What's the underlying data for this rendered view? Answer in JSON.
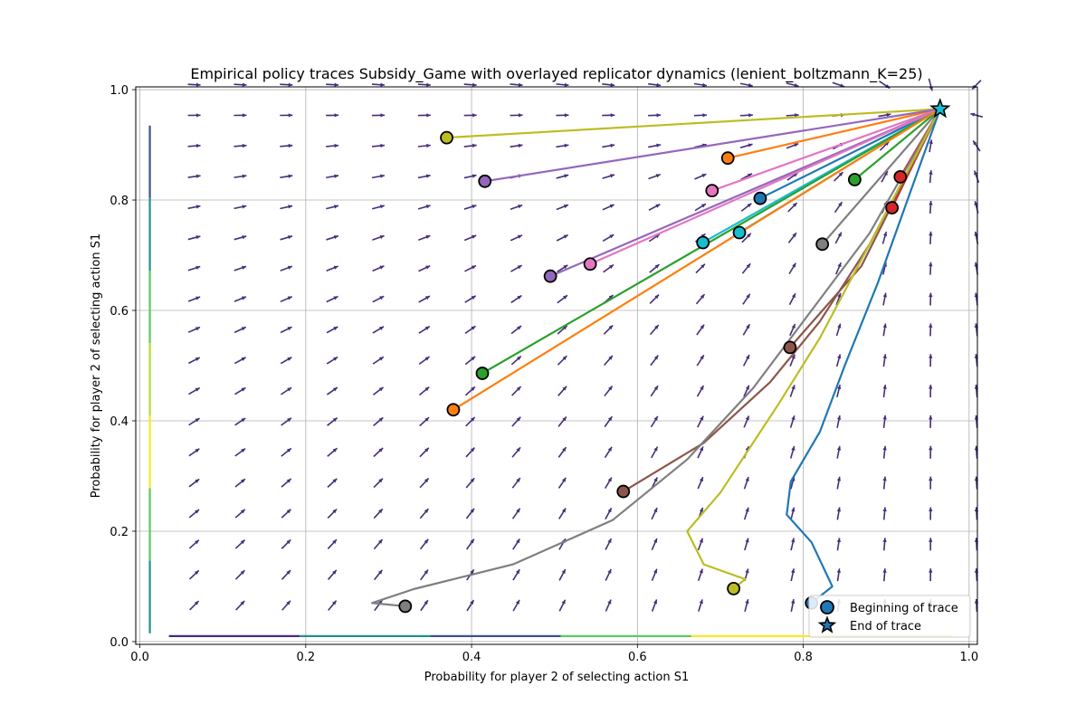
{
  "chart_data": {
    "type": "line",
    "title": "Empirical policy traces Subsidy_Game with overlayed replicator dynamics (lenient_boltzmann_K=25)",
    "xlabel": "Probability for player 2 of selecting action S1",
    "ylabel": "Probability for player 2 of selecting action S1",
    "xlim": [
      -0.005,
      1.01
    ],
    "ylim": [
      -0.005,
      1.005
    ],
    "xticks": [
      "0.0",
      "0.2",
      "0.4",
      "0.6",
      "0.8",
      "1.0"
    ],
    "yticks": [
      "0.0",
      "0.2",
      "0.4",
      "0.6",
      "0.8",
      "1.0"
    ],
    "grid": true,
    "legend": {
      "placement": "bottom-right",
      "entries": [
        "Beginning of trace",
        "End of trace"
      ]
    },
    "end_point": [
      0.965,
      0.965
    ],
    "traces": [
      {
        "color": "#bcbd22",
        "points": [
          [
            0.37,
            0.913
          ],
          [
            0.965,
            0.965
          ]
        ]
      },
      {
        "color": "#ff7f0e",
        "points": [
          [
            0.709,
            0.876
          ],
          [
            0.965,
            0.965
          ]
        ]
      },
      {
        "color": "#9467bd",
        "points": [
          [
            0.416,
            0.834
          ],
          [
            0.965,
            0.965
          ]
        ]
      },
      {
        "color": "#e377c2",
        "points": [
          [
            0.69,
            0.817
          ],
          [
            0.965,
            0.965
          ]
        ]
      },
      {
        "color": "#1f77b4",
        "points": [
          [
            0.748,
            0.803
          ],
          [
            0.965,
            0.965
          ]
        ]
      },
      {
        "color": "#2ca02c",
        "points": [
          [
            0.862,
            0.837
          ],
          [
            0.965,
            0.965
          ]
        ]
      },
      {
        "color": "#d62728",
        "points": [
          [
            0.917,
            0.842
          ],
          [
            0.965,
            0.965
          ]
        ]
      },
      {
        "color": "#d62728",
        "points": [
          [
            0.907,
            0.786
          ],
          [
            0.965,
            0.965
          ]
        ]
      },
      {
        "color": "#7f7f7f",
        "points": [
          [
            0.823,
            0.72
          ],
          [
            0.965,
            0.965
          ]
        ]
      },
      {
        "color": "#17becf",
        "points": [
          [
            0.723,
            0.741
          ],
          [
            0.965,
            0.965
          ]
        ]
      },
      {
        "color": "#17becf",
        "points": [
          [
            0.679,
            0.723
          ],
          [
            0.965,
            0.965
          ]
        ]
      },
      {
        "color": "#9467bd",
        "points": [
          [
            0.495,
            0.662
          ],
          [
            0.965,
            0.965
          ]
        ]
      },
      {
        "color": "#e377c2",
        "points": [
          [
            0.543,
            0.684
          ],
          [
            0.965,
            0.965
          ]
        ]
      },
      {
        "color": "#2ca02c",
        "points": [
          [
            0.413,
            0.486
          ],
          [
            0.965,
            0.965
          ]
        ]
      },
      {
        "color": "#ff7f0e",
        "points": [
          [
            0.378,
            0.42
          ],
          [
            0.965,
            0.965
          ]
        ]
      },
      {
        "color": "#8c564b",
        "points": [
          [
            0.784,
            0.533
          ],
          [
            0.87,
            0.68
          ],
          [
            0.965,
            0.965
          ]
        ]
      },
      {
        "color": "#8c564b",
        "points": [
          [
            0.583,
            0.272
          ],
          [
            0.68,
            0.36
          ],
          [
            0.76,
            0.47
          ],
          [
            0.82,
            0.58
          ],
          [
            0.88,
            0.72
          ],
          [
            0.965,
            0.965
          ]
        ]
      },
      {
        "color": "#7f7f7f",
        "points": [
          [
            0.32,
            0.064
          ],
          [
            0.28,
            0.07
          ],
          [
            0.33,
            0.095
          ],
          [
            0.45,
            0.14
          ],
          [
            0.57,
            0.22
          ],
          [
            0.66,
            0.33
          ],
          [
            0.74,
            0.46
          ],
          [
            0.81,
            0.6
          ],
          [
            0.88,
            0.74
          ],
          [
            0.965,
            0.965
          ]
        ]
      },
      {
        "color": "#bcbd22",
        "points": [
          [
            0.716,
            0.096
          ],
          [
            0.73,
            0.113
          ],
          [
            0.68,
            0.14
          ],
          [
            0.66,
            0.2
          ],
          [
            0.7,
            0.27
          ],
          [
            0.77,
            0.43
          ],
          [
            0.82,
            0.55
          ],
          [
            0.88,
            0.72
          ],
          [
            0.965,
            0.965
          ]
        ]
      },
      {
        "color": "#1f77b4",
        "points": [
          [
            0.81,
            0.07
          ],
          [
            0.835,
            0.1
          ],
          [
            0.81,
            0.18
          ],
          [
            0.78,
            0.23
          ],
          [
            0.785,
            0.29
          ],
          [
            0.82,
            0.38
          ],
          [
            0.85,
            0.5
          ],
          [
            0.89,
            0.65
          ],
          [
            0.965,
            0.965
          ]
        ]
      }
    ],
    "border_traces": [
      {
        "points": [
          [
            0.035,
            0.01
          ],
          [
            0.98,
            0.01
          ]
        ],
        "colors": [
          "#472d7b",
          "#21918c",
          "#3b528b",
          "#5ec962",
          "#fde725",
          "#b5de2b"
        ]
      },
      {
        "points": [
          [
            0.012,
            0.935
          ],
          [
            0.012,
            0.015
          ]
        ],
        "colors": [
          "#3b528b",
          "#21918c",
          "#5ec962",
          "#b5de2b",
          "#fde725",
          "#5ec962",
          "#21918c"
        ]
      }
    ],
    "field": {
      "color": "#472d7b"
    }
  }
}
